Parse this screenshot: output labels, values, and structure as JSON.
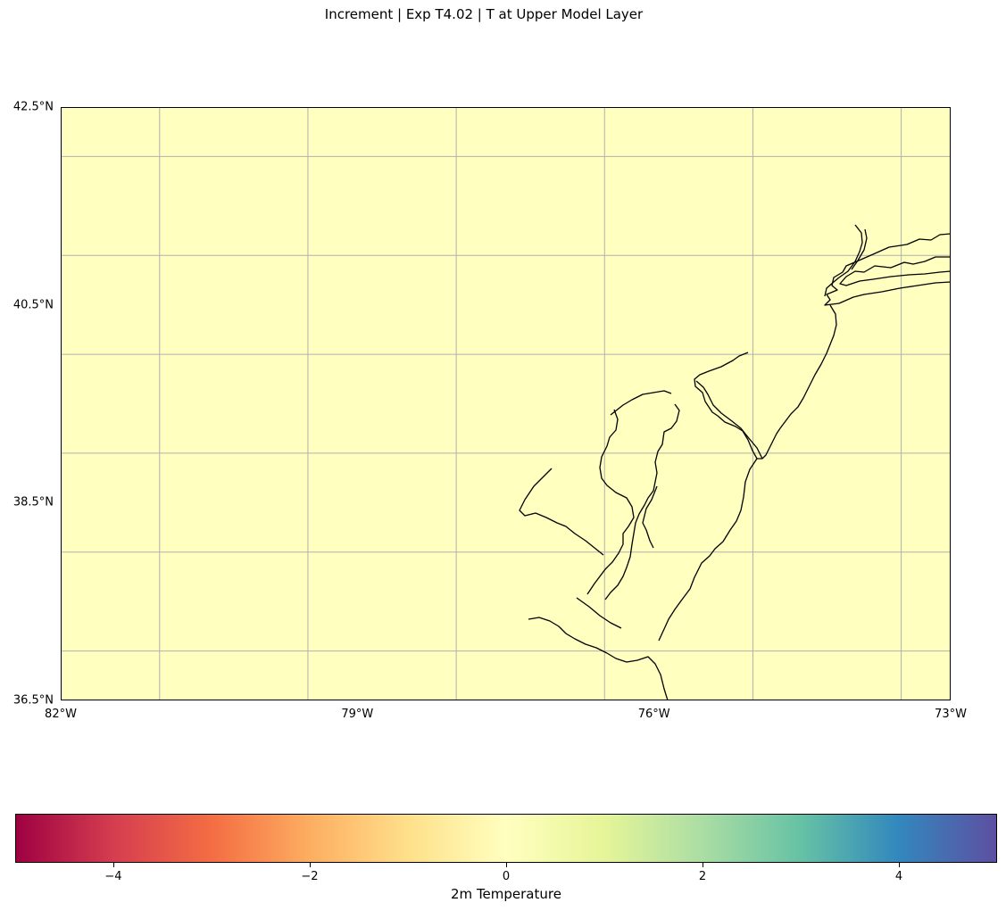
{
  "title": "Increment | Exp T4.02 | T at Upper Model Layer",
  "map": {
    "extent": {
      "lon_min": -82,
      "lon_max": -73,
      "lat_min": 36.5,
      "lat_max": 42.5
    },
    "fill_color": "#ffffbf",
    "grid_color": "#b0b0b0",
    "coastline_color": "#000000",
    "gridlines_lon": [
      -81,
      -79.5,
      -78,
      -76.5,
      -75,
      -73.5
    ],
    "gridlines_lat": [
      37,
      38,
      39,
      40,
      41,
      42
    ],
    "lat_ticks": [
      {
        "value": 42.5,
        "label": "42.5°N"
      },
      {
        "value": 40.5,
        "label": "40.5°N"
      },
      {
        "value": 38.5,
        "label": "38.5°N"
      },
      {
        "value": 36.5,
        "label": "36.5°N"
      }
    ],
    "lon_ticks": [
      {
        "value": -82,
        "label": "82°W"
      },
      {
        "value": -79,
        "label": "79°W"
      },
      {
        "value": -76,
        "label": "76°W"
      },
      {
        "value": -73,
        "label": "73°W"
      }
    ]
  },
  "colorbar": {
    "label": "2m Temperature",
    "range": [
      -5,
      5
    ],
    "colormap": "Spectral",
    "ticks": [
      {
        "value": -4,
        "label": "−4"
      },
      {
        "value": -2,
        "label": "−2"
      },
      {
        "value": 0,
        "label": "0"
      },
      {
        "value": 2,
        "label": "2"
      },
      {
        "value": 4,
        "label": "4"
      }
    ]
  }
}
